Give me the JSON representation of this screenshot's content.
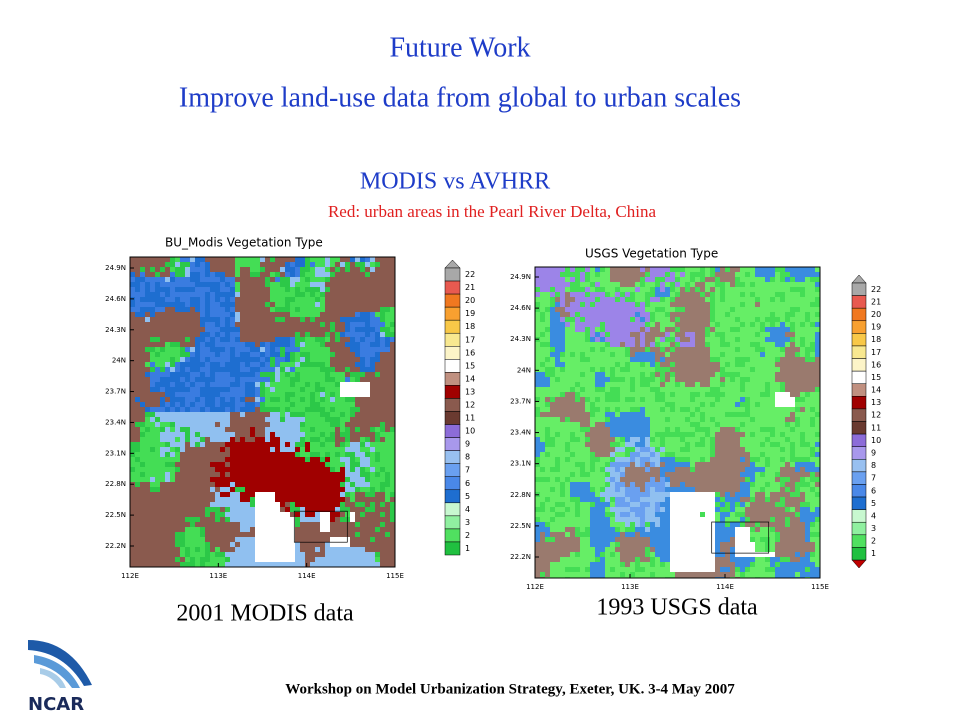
{
  "title": {
    "line1": "Future Work",
    "line2": "Improve land-use data from global to urban scales"
  },
  "subtitle": "MODIS vs AVHRR",
  "note": "Red: urban areas in the Pearl River Delta, China",
  "maps": [
    {
      "title": "BU_Modis Vegetation Type",
      "lat_labels": [
        "24.9N",
        "24.6N",
        "24.3N",
        "24N",
        "23.7N",
        "23.4N",
        "23.1N",
        "22.8N",
        "22.5N",
        "22.2N"
      ],
      "lon_labels": [
        "112E",
        "113E",
        "114E",
        "115E"
      ],
      "colorbar_labels": [
        "22",
        "21",
        "20",
        "19",
        "18",
        "17",
        "16",
        "15",
        "14",
        "13",
        "12",
        "11",
        "10",
        "9",
        "8",
        "7",
        "6",
        "5",
        "4",
        "3",
        "2",
        "1"
      ],
      "caption": "2001 MODIS data"
    },
    {
      "title": "USGS Vegetation Type",
      "lat_labels": [
        "24.9N",
        "24.6N",
        "24.3N",
        "24N",
        "23.7N",
        "23.4N",
        "23.1N",
        "22.8N",
        "22.5N",
        "22.2N"
      ],
      "lon_labels": [
        "112E",
        "113E",
        "114E",
        "115E"
      ],
      "colorbar_labels": [
        "22",
        "21",
        "20",
        "19",
        "18",
        "17",
        "16",
        "15",
        "14",
        "13",
        "12",
        "11",
        "10",
        "9",
        "8",
        "7",
        "6",
        "5",
        "4",
        "3",
        "2",
        "1"
      ],
      "caption": "1993 USGS data"
    }
  ],
  "footer": "Workshop on Model Urbanization Strategy, Exeter, UK. 3-4 May 2007",
  "logo": "NCAR"
}
